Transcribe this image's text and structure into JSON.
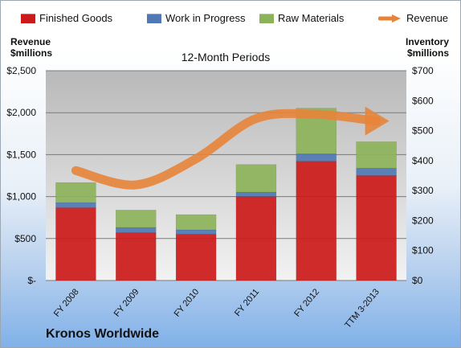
{
  "chart_data": {
    "type": "bar",
    "subtitle": "12-Month Periods",
    "left_axis_title": "Revenue $millions",
    "right_axis_title": "Inventory $millions",
    "categories": [
      "FY 2008",
      "FY 2009",
      "FY 2010",
      "FY 2011",
      "FY 2012",
      "TTM 3-2013"
    ],
    "series": [
      {
        "name": "Finished Goods",
        "axis": "right",
        "stack": true,
        "color": "#cc1a1a",
        "values": [
          243,
          160,
          155,
          280,
          398,
          350
        ]
      },
      {
        "name": "Work in Progress",
        "axis": "right",
        "stack": true,
        "color": "#4f78b5",
        "values": [
          17,
          17,
          14,
          15,
          25,
          25
        ]
      },
      {
        "name": "Raw Materials",
        "axis": "right",
        "stack": true,
        "color": "#8db35a",
        "values": [
          67,
          58,
          51,
          92,
          152,
          88
        ]
      },
      {
        "name": "Revenue",
        "axis": "left",
        "type": "line",
        "color": "#e8843a",
        "values": [
          1310,
          1140,
          1450,
          1930,
          1980,
          1900
        ]
      }
    ],
    "left_ticks": [
      "$-",
      "$500",
      "$1,000",
      "$1,500",
      "$2,000",
      "$2,500"
    ],
    "right_ticks": [
      "$0",
      "$100",
      "$200",
      "$300",
      "$400",
      "$500",
      "$600",
      "$700"
    ],
    "ylim_left": [
      0,
      2500
    ],
    "ylim_right": [
      0,
      700
    ],
    "grid": true,
    "legend_position": "top"
  },
  "footer": {
    "company": "Kronos Worldwide"
  }
}
